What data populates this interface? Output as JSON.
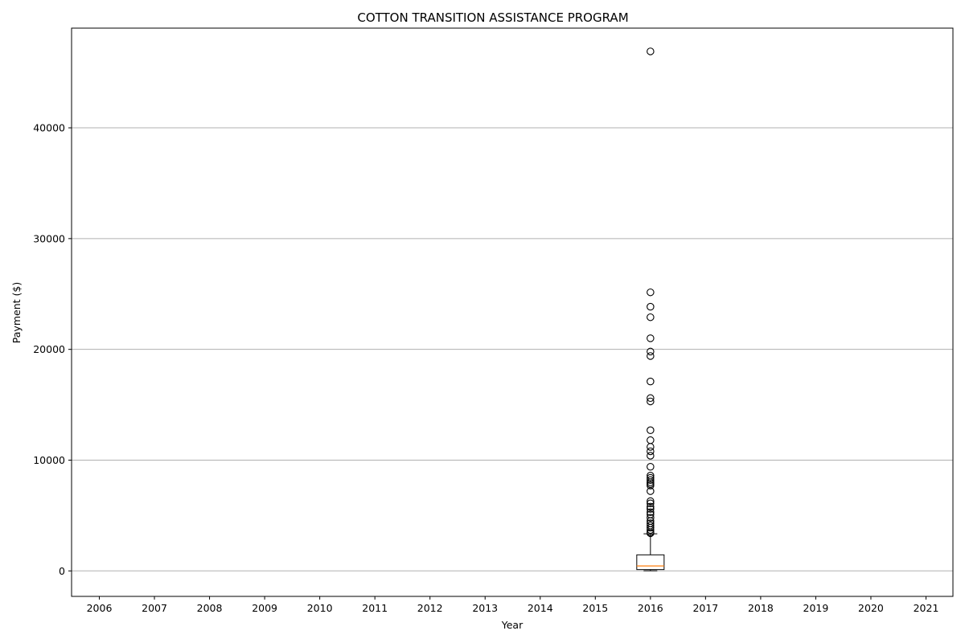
{
  "chart_data": {
    "type": "box",
    "title": "COTTON TRANSITION ASSISTANCE PROGRAM",
    "xlabel": "Year",
    "ylabel": "Payment ($)",
    "categories": [
      "2006",
      "2007",
      "2008",
      "2009",
      "2010",
      "2011",
      "2012",
      "2013",
      "2014",
      "2015",
      "2016",
      "2017",
      "2018",
      "2019",
      "2020",
      "2021"
    ],
    "y_ticks": [
      0,
      10000,
      20000,
      30000,
      40000
    ],
    "ylim": [
      -2300,
      49000
    ],
    "grid": "y",
    "boxes": [
      {
        "category": "2016",
        "whisker_low": 10,
        "q1": 120,
        "median": 450,
        "q3": 1450,
        "whisker_high": 3350,
        "outliers": [
          46900,
          25150,
          23850,
          22900,
          21000,
          19800,
          19400,
          17100,
          15600,
          15300,
          12700,
          11800,
          11200,
          10800,
          10400,
          9400,
          8600,
          8400,
          8200,
          8000,
          7850,
          7700,
          7200,
          6300,
          6100,
          5800,
          5600,
          5300,
          5100,
          4800,
          4500,
          4300,
          4100,
          3900,
          3700,
          3500,
          3400
        ]
      }
    ],
    "colors": {
      "box": "#000000",
      "median": "#ff7f0e",
      "grid": "#b0b0b0"
    }
  }
}
